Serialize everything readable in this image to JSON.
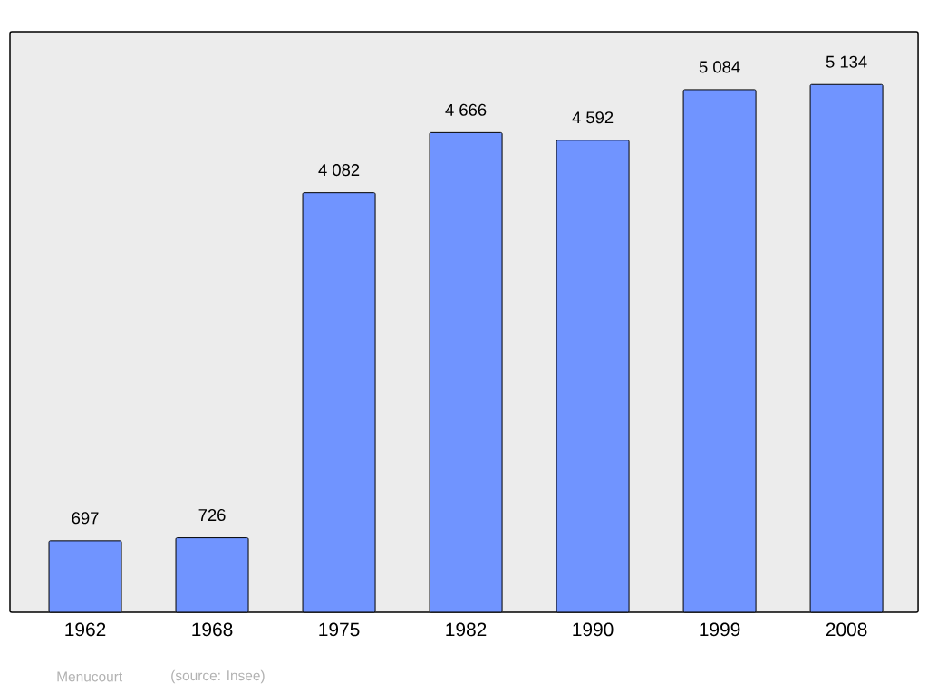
{
  "chart_data": {
    "type": "bar",
    "categories": [
      "1962",
      "1968",
      "1975",
      "1982",
      "1990",
      "1999",
      "2008"
    ],
    "values": [
      697,
      726,
      4082,
      4666,
      4592,
      5084,
      5134
    ],
    "value_labels": [
      "697",
      "726",
      "4 082",
      "4 666",
      "4 592",
      "5 084",
      "5 134"
    ],
    "color": "#7094ff",
    "annotations": [
      "Menucourt",
      "(source: Insee)"
    ]
  }
}
